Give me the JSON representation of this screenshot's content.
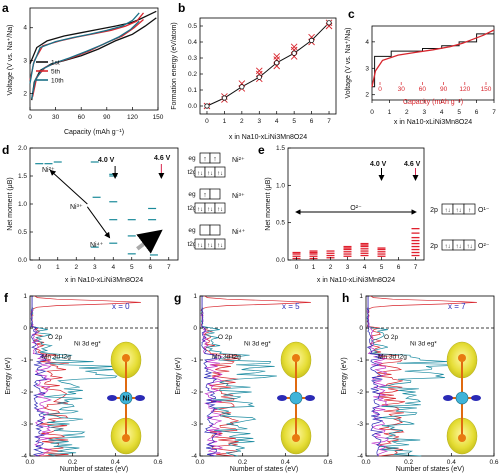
{
  "panels": {
    "a": {
      "letter": "a",
      "xlabel": "Capacity (mAh g⁻¹)",
      "ylabel": "Voltage (V vs. Na⁺/Na)",
      "xlim": [
        0,
        150
      ],
      "ylim": [
        1.5,
        4.6
      ],
      "xticks": [
        "0",
        "30",
        "60",
        "90",
        "120",
        "150"
      ],
      "yticks": [
        "2",
        "3",
        "4"
      ],
      "legend": [
        "1st",
        "5th",
        "10th"
      ],
      "colors": [
        "#111111",
        "#d8262e",
        "#1a6f86"
      ]
    },
    "b": {
      "letter": "b",
      "xlabel": "x in Na10-xLiNi3Mn8O24",
      "ylabel": "Formation energy (eV/atom)",
      "xticks": [
        "0",
        "1",
        "2",
        "3",
        "4",
        "5",
        "6",
        "7"
      ],
      "yticks": [
        "0.0",
        "0.1",
        "0.2",
        "0.3",
        "0.4",
        "0.5"
      ]
    },
    "c": {
      "letter": "c",
      "xlabel": "x in Na10-xLiNi3Mn8O24",
      "ylabel": "Voltage (V vs. Na⁺/Na)",
      "top_axis_label": "Capacity (mAh g⁻¹)",
      "xticks": [
        "0",
        "1",
        "2",
        "3",
        "4",
        "5",
        "6",
        "7"
      ],
      "yticks": [
        "2",
        "3",
        "4"
      ],
      "top_ticks": [
        "0",
        "30",
        "60",
        "90",
        "120",
        "150"
      ]
    },
    "d": {
      "letter": "d",
      "xlabel": "x in Na10-xLiNi3Mn8O24",
      "ylabel": "Net moment (μB)",
      "xticks": [
        "0",
        "1",
        "2",
        "3",
        "4",
        "5",
        "6",
        "7"
      ],
      "yticks": [
        "0.0",
        "0.5",
        "1.0",
        "1.5",
        "2.0"
      ],
      "voltage_labels": [
        "4.0 V",
        "4.6 V"
      ],
      "ion_labels": [
        "Ni²⁺",
        "Ni³⁺",
        "Ni⁴⁺"
      ],
      "orbital_labels": {
        "eg": "eg",
        "t2g": "t2g"
      },
      "level_labels": [
        "Ni²⁺",
        "Ni³⁺",
        "Ni⁴⁺"
      ]
    },
    "e": {
      "letter": "e",
      "xlabel": "x in Na10-xLiNi3Mn8O24",
      "ylabel": "Net moment (μB)",
      "xticks": [
        "0",
        "1",
        "2",
        "3",
        "4",
        "5",
        "6",
        "7"
      ],
      "yticks": [
        "0.0",
        "0.5",
        "1.0",
        "1.5"
      ],
      "voltage_labels": [
        "4.0 V",
        "4.6 V"
      ],
      "arrow_label": "O²⁻",
      "orbital_label": "2p",
      "state_labels": [
        "O¹⁻",
        "O²⁻"
      ]
    },
    "f": {
      "letter": "f",
      "x_label_text": "x = 0",
      "xlabel": "Number of states (eV)",
      "ylabel": "Energy (eV)",
      "xticks": [
        "0.0",
        "0.2",
        "0.4",
        "0.6"
      ],
      "yticks": [
        "1",
        "0",
        "-1",
        "-2",
        "-3",
        "-4"
      ],
      "annotations": [
        "O 2p",
        "Ni 3d eg*",
        "Mn 3d t2g"
      ],
      "atom_label": "Ni"
    },
    "g": {
      "letter": "g",
      "x_label_text": "x = 5",
      "xlabel": "Number of states (eV)",
      "ylabel": "Energy (eV)",
      "xticks": [
        "0.0",
        "0.2",
        "0.4",
        "0.6"
      ],
      "yticks": [
        "1",
        "0",
        "-1",
        "-2",
        "-3",
        "-4"
      ],
      "annotations": [
        "O 2p",
        "Ni 3d eg*",
        "Mn 3d t2g"
      ]
    },
    "h": {
      "letter": "h",
      "x_label_text": "x = 7",
      "xlabel": "Number of states (eV)",
      "ylabel": "Energy (eV)",
      "xticks": [
        "0.0",
        "0.2",
        "0.4",
        "0.6"
      ],
      "yticks": [
        "1",
        "0",
        "-1",
        "-2",
        "-3",
        "-4"
      ],
      "annotations": [
        "O 2p",
        "Ni 3d eg*",
        "Mn 3d t2g"
      ]
    }
  },
  "chart_data": [
    {
      "type": "line",
      "panel": "a",
      "x_unit": "mAh/g",
      "series": [
        {
          "name": "1st",
          "color": "#111111",
          "charge": [
            [
              0,
              2.9
            ],
            [
              8,
              3.4
            ],
            [
              20,
              3.6
            ],
            [
              40,
              3.75
            ],
            [
              60,
              3.85
            ],
            [
              80,
              3.95
            ],
            [
              100,
              4.05
            ],
            [
              118,
              4.15
            ],
            [
              128,
              4.25
            ],
            [
              140,
              4.4
            ],
            [
              148,
              4.5
            ]
          ],
          "discharge": [
            [
              148,
              4.3
            ],
            [
              135,
              4.05
            ],
            [
              120,
              3.8
            ],
            [
              100,
              3.6
            ],
            [
              80,
              3.35
            ],
            [
              60,
              3.15
            ],
            [
              40,
              3.0
            ],
            [
              25,
              2.9
            ],
            [
              12,
              2.7
            ],
            [
              5,
              2.35
            ],
            [
              2,
              1.8
            ]
          ]
        },
        {
          "name": "5th",
          "color": "#d8262e",
          "charge": [
            [
              0,
              2.4
            ],
            [
              5,
              3.0
            ],
            [
              15,
              3.45
            ],
            [
              35,
              3.6
            ],
            [
              55,
              3.72
            ],
            [
              75,
              3.82
            ],
            [
              95,
              3.92
            ],
            [
              112,
              4.05
            ],
            [
              125,
              4.2
            ],
            [
              133,
              4.45
            ]
          ],
          "discharge": [
            [
              133,
              4.25
            ],
            [
              122,
              4.0
            ],
            [
              108,
              3.75
            ],
            [
              90,
              3.55
            ],
            [
              70,
              3.3
            ],
            [
              50,
              3.1
            ],
            [
              32,
              2.95
            ],
            [
              18,
              2.8
            ],
            [
              8,
              2.5
            ],
            [
              3,
              1.9
            ]
          ]
        },
        {
          "name": "10th",
          "color": "#1a6f86",
          "charge": [
            [
              0,
              2.3
            ],
            [
              4,
              2.9
            ],
            [
              12,
              3.4
            ],
            [
              30,
              3.58
            ],
            [
              50,
              3.7
            ],
            [
              70,
              3.8
            ],
            [
              90,
              3.92
            ],
            [
              108,
              4.05
            ],
            [
              120,
              4.22
            ],
            [
              128,
              4.45
            ]
          ],
          "discharge": [
            [
              128,
              4.2
            ],
            [
              118,
              3.95
            ],
            [
              104,
              3.72
            ],
            [
              86,
              3.5
            ],
            [
              66,
              3.28
            ],
            [
              46,
              3.08
            ],
            [
              28,
              2.92
            ],
            [
              15,
              2.75
            ],
            [
              6,
              2.4
            ],
            [
              2,
              1.85
            ]
          ]
        }
      ]
    },
    {
      "type": "scatter",
      "panel": "b",
      "x": [
        0,
        1,
        2,
        3,
        4,
        5,
        6,
        7
      ],
      "hull": [
        0.0,
        0.05,
        0.12,
        0.18,
        0.27,
        0.33,
        0.41,
        0.52
      ],
      "points": [
        [
          0,
          0.0
        ],
        [
          1,
          0.04
        ],
        [
          1,
          0.06
        ],
        [
          2,
          0.11
        ],
        [
          2,
          0.14
        ],
        [
          3,
          0.17
        ],
        [
          3,
          0.2
        ],
        [
          3,
          0.22
        ],
        [
          4,
          0.25
        ],
        [
          4,
          0.29
        ],
        [
          4,
          0.31
        ],
        [
          5,
          0.31
        ],
        [
          5,
          0.35
        ],
        [
          5,
          0.37
        ],
        [
          6,
          0.4
        ],
        [
          6,
          0.43
        ],
        [
          7,
          0.52
        ],
        [
          7,
          0.5
        ]
      ],
      "ylim": [
        -0.05,
        0.55
      ]
    },
    {
      "type": "line",
      "panel": "c",
      "step_black": [
        [
          0,
          2.3
        ],
        [
          0.15,
          2.3
        ],
        [
          0.15,
          3.45
        ],
        [
          1.1,
          3.45
        ],
        [
          1.1,
          3.65
        ],
        [
          2.9,
          3.65
        ],
        [
          2.9,
          3.75
        ],
        [
          4.0,
          3.75
        ],
        [
          4.0,
          3.85
        ],
        [
          5.0,
          3.85
        ],
        [
          5.0,
          4.0
        ],
        [
          6.0,
          4.0
        ],
        [
          6.0,
          4.3
        ],
        [
          7,
          4.3
        ]
      ],
      "red_curve": [
        [
          0,
          2.3
        ],
        [
          0.2,
          2.9
        ],
        [
          0.6,
          3.3
        ],
        [
          1.5,
          3.5
        ],
        [
          2.5,
          3.6
        ],
        [
          3.5,
          3.7
        ],
        [
          4.5,
          3.82
        ],
        [
          5.2,
          3.95
        ],
        [
          5.8,
          4.1
        ],
        [
          6.4,
          4.25
        ],
        [
          7,
          4.45
        ]
      ],
      "ylim": [
        1.8,
        4.6
      ]
    },
    {
      "type": "scatter",
      "panel": "d",
      "levels_teal": [
        [
          0,
          1.72
        ],
        [
          0.5,
          1.72
        ],
        [
          1,
          1.75
        ],
        [
          3,
          1.75
        ],
        [
          4,
          1.53
        ],
        [
          4,
          1.5
        ],
        [
          3.1,
          1.12
        ],
        [
          4,
          1.04
        ],
        [
          4,
          0.72
        ],
        [
          5,
          0.72
        ],
        [
          6.1,
          0.92
        ],
        [
          6.1,
          0.72
        ],
        [
          6,
          0.43
        ],
        [
          5,
          0.43
        ],
        [
          4,
          0.3
        ],
        [
          3,
          0.23
        ],
        [
          5,
          0.11
        ],
        [
          6.2,
          0.09
        ]
      ],
      "ylim": [
        0.0,
        2.0
      ]
    },
    {
      "type": "bar",
      "panel": "e",
      "columns": [
        {
          "x": 0,
          "values": [
            0.02,
            0.05,
            0.08,
            0.1
          ]
        },
        {
          "x": 1,
          "values": [
            0.02,
            0.05,
            0.08,
            0.1,
            0.12
          ]
        },
        {
          "x": 2,
          "values": [
            0.03,
            0.06,
            0.09,
            0.12
          ]
        },
        {
          "x": 3,
          "values": [
            0.05,
            0.08,
            0.11,
            0.14,
            0.16,
            0.18
          ]
        },
        {
          "x": 4,
          "values": [
            0.06,
            0.09,
            0.12,
            0.15,
            0.18,
            0.2,
            0.22
          ]
        },
        {
          "x": 5,
          "values": [
            0.05,
            0.08,
            0.11,
            0.14,
            0.16
          ]
        },
        {
          "x": 7,
          "values": [
            0.06,
            0.1,
            0.14,
            0.18,
            0.22,
            0.26,
            0.3,
            0.36,
            0.42
          ]
        }
      ],
      "ylim": [
        0.0,
        1.5
      ]
    },
    {
      "type": "line",
      "panel": "f",
      "fermi_level": 0,
      "ylim": [
        -4,
        1
      ],
      "xlim": [
        0,
        0.6
      ]
    },
    {
      "type": "line",
      "panel": "g",
      "fermi_level": 0,
      "ylim": [
        -4,
        1
      ],
      "xlim": [
        0,
        0.6
      ]
    },
    {
      "type": "line",
      "panel": "h",
      "fermi_level": 0,
      "ylim": [
        -4,
        1
      ],
      "xlim": [
        0,
        0.6
      ]
    }
  ]
}
